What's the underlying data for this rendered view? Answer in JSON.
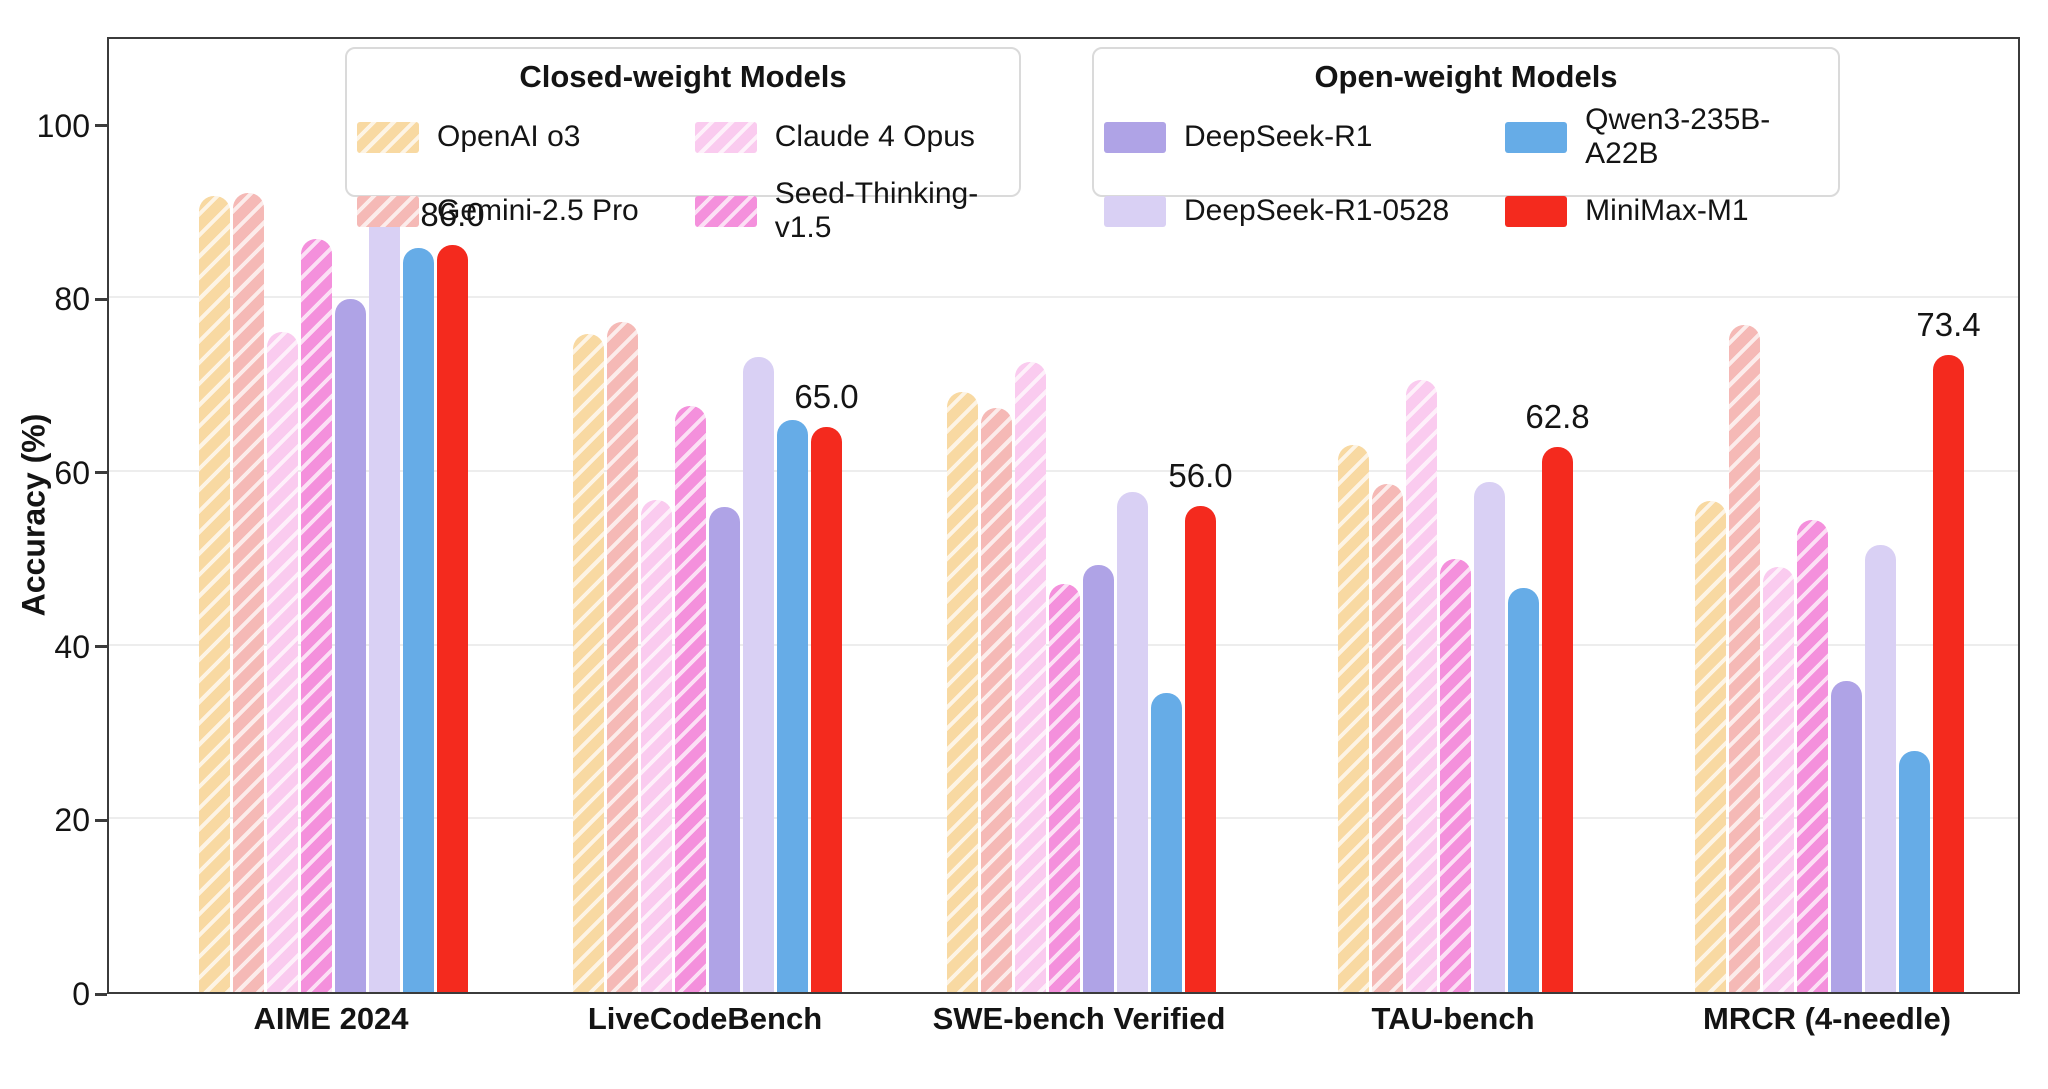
{
  "chart_data": {
    "type": "bar",
    "title": "",
    "ylabel": "Accuracy (%)",
    "ylim": [
      0,
      100
    ],
    "yticks": [
      0,
      20,
      40,
      60,
      80,
      100
    ],
    "grid": "horizontal gridlines at 20, 40, 60, 80",
    "legend_position": "top, two boxes inside plot",
    "categories": [
      "AIME 2024",
      "LiveCodeBench",
      "SWE-bench Verified",
      "TAU-bench",
      "MRCR (4-needle)"
    ],
    "series": [
      {
        "name": "OpenAI o3",
        "legend_group": "closed",
        "color": "#F8D9A2",
        "hatched": true,
        "values": [
          91.6,
          75.8,
          69.1,
          63.0,
          56.5
        ]
      },
      {
        "name": "Gemini-2.5 Pro",
        "legend_group": "closed",
        "color": "#F5B9B6",
        "hatched": true,
        "values": [
          92.0,
          77.1,
          67.2,
          58.5,
          76.8
        ]
      },
      {
        "name": "Claude 4 Opus",
        "legend_group": "closed",
        "color": "#FACBEF",
        "hatched": true,
        "values": [
          76.0,
          56.6,
          72.5,
          70.5,
          48.9
        ]
      },
      {
        "name": "Seed-Thinking-v1.5",
        "legend_group": "closed",
        "color": "#F490DC",
        "hatched": true,
        "values": [
          86.7,
          67.5,
          47.0,
          49.9,
          54.3
        ]
      },
      {
        "name": "DeepSeek-R1",
        "legend_group": "open",
        "color": "#AFA3E6",
        "hatched": false,
        "values": [
          79.8,
          55.9,
          49.2,
          null,
          35.8
        ]
      },
      {
        "name": "DeepSeek-R1-0528",
        "legend_group": "open",
        "color": "#D9D0F4",
        "hatched": false,
        "values": [
          91.4,
          73.1,
          57.6,
          58.7,
          51.5
        ]
      },
      {
        "name": "Qwen3-235B-A22B",
        "legend_group": "open",
        "color": "#66ACE7",
        "hatched": false,
        "values": [
          85.7,
          65.9,
          34.4,
          46.5,
          27.7
        ]
      },
      {
        "name": "MiniMax-M1",
        "legend_group": "open",
        "color": "#F42A1E",
        "hatched": false,
        "values": [
          86.0,
          65.0,
          56.0,
          62.8,
          73.4
        ]
      }
    ],
    "annotations": [
      {
        "category": "AIME 2024",
        "series": "MiniMax-M1",
        "text": "86.0"
      },
      {
        "category": "LiveCodeBench",
        "series": "MiniMax-M1",
        "text": "65.0"
      },
      {
        "category": "SWE-bench Verified",
        "series": "MiniMax-M1",
        "text": "56.0"
      },
      {
        "category": "TAU-bench",
        "series": "MiniMax-M1",
        "text": "62.8"
      },
      {
        "category": "MRCR (4-needle)",
        "series": "MiniMax-M1",
        "text": "73.4"
      }
    ],
    "legend": {
      "closed": {
        "title": "Closed-weight Models",
        "items": [
          "OpenAI o3",
          "Gemini-2.5 Pro",
          "Claude 4 Opus",
          "Seed-Thinking-v1.5"
        ]
      },
      "open": {
        "title": "Open-weight Models",
        "items": [
          "DeepSeek-R1",
          "DeepSeek-R1-0528",
          "Qwen3-235B-A22B",
          "MiniMax-M1"
        ]
      }
    }
  }
}
